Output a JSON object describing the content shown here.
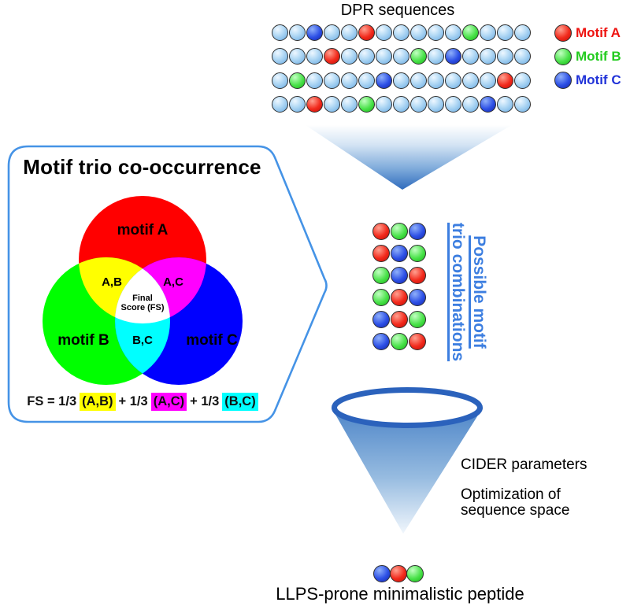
{
  "header": {
    "title": "DPR sequences"
  },
  "legend": {
    "items": [
      {
        "label": "Motif A",
        "color": "#ee1310",
        "bead": "r"
      },
      {
        "label": "Motif B",
        "color": "#23cb1f",
        "bead": "g"
      },
      {
        "label": "Motif C",
        "color": "#2133d8",
        "bead": "b"
      }
    ]
  },
  "sequences": {
    "rows": [
      [
        "lb",
        "lb",
        "b",
        "lb",
        "lb",
        "r",
        "lb",
        "lb",
        "lb",
        "lb",
        "lb",
        "g",
        "lb",
        "lb",
        "lb"
      ],
      [
        "lb",
        "lb",
        "lb",
        "r",
        "lb",
        "lb",
        "lb",
        "lb",
        "g",
        "lb",
        "b",
        "lb",
        "lb",
        "lb",
        "lb"
      ],
      [
        "lb",
        "g",
        "lb",
        "lb",
        "lb",
        "lb",
        "b",
        "lb",
        "lb",
        "lb",
        "lb",
        "lb",
        "lb",
        "r",
        "lb"
      ],
      [
        "lb",
        "lb",
        "r",
        "lb",
        "lb",
        "g",
        "lb",
        "lb",
        "lb",
        "lb",
        "lb",
        "lb",
        "b",
        "lb",
        "lb"
      ]
    ]
  },
  "bubble": {
    "title": "Motif trio co-occurrence",
    "venn": {
      "circle_a_label": "motif A",
      "circle_b_label": "motif B",
      "circle_c_label": "motif C",
      "ab_label": "A,B",
      "ac_label": "A,C",
      "bc_label": "B,C",
      "center_line1": "Final",
      "center_line2": "Score (FS)",
      "colors": {
        "a": "#ff0000",
        "b": "#00ff00",
        "c": "#0000ff",
        "ab": "#ffff00",
        "ac": "#ff00ff",
        "bc": "#00ffff",
        "center": "#ffffff"
      }
    },
    "formula": {
      "prefix": "FS = 1/3",
      "term_ab": "(A,B)",
      "plus1": "+ 1/3",
      "term_ac": "(A,C)",
      "plus2": "+ 1/3",
      "term_bc": "(B,C)"
    },
    "border_color": "#4593e6"
  },
  "combos": {
    "rows": [
      [
        "r",
        "g",
        "b"
      ],
      [
        "r",
        "b",
        "g"
      ],
      [
        "g",
        "b",
        "r"
      ],
      [
        "g",
        "r",
        "b"
      ],
      [
        "b",
        "r",
        "g"
      ],
      [
        "b",
        "g",
        "r"
      ]
    ],
    "label_line1": "Possible motif",
    "label_line2": "trio combinations",
    "label_color": "#3c7ee0"
  },
  "funnel": {
    "note1": "CIDER parameters",
    "note2_line1": "Optimization of",
    "note2_line2": "sequence space",
    "ring_color": "#2b62bc"
  },
  "final": {
    "beads": [
      "b",
      "r",
      "g"
    ],
    "caption": "LLPS-prone minimalistic peptide"
  }
}
